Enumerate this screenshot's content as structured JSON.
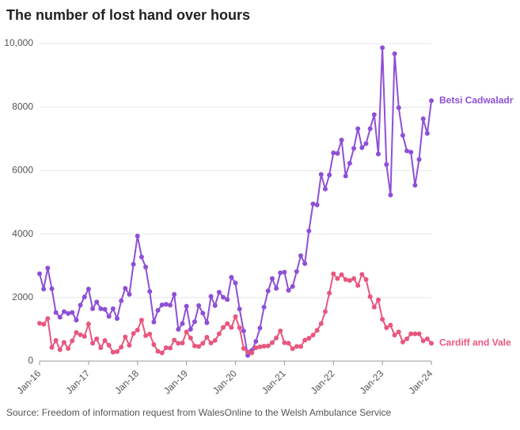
{
  "chart_data": {
    "type": "line",
    "title": "The number of lost hand over hours",
    "source": "Source: Freedom of information request from WalesOnline to the Welsh Ambulance Service",
    "categories": [
      "Jan-16",
      null,
      null,
      null,
      null,
      null,
      null,
      null,
      null,
      null,
      null,
      null,
      "Jan-17",
      null,
      null,
      null,
      null,
      null,
      null,
      null,
      null,
      null,
      null,
      null,
      "Jan-18",
      null,
      null,
      null,
      null,
      null,
      null,
      null,
      null,
      null,
      null,
      null,
      "Jan-19",
      null,
      null,
      null,
      null,
      null,
      null,
      null,
      null,
      null,
      null,
      null,
      "Jan-20",
      null,
      null,
      null,
      null,
      null,
      null,
      null,
      null,
      null,
      null,
      null,
      "Jan-21",
      null,
      null,
      null,
      null,
      null,
      null,
      null,
      null,
      null,
      null,
      null,
      "Jan-22",
      null,
      null,
      null,
      null,
      null,
      null,
      null,
      null,
      null,
      null,
      null,
      "Jan-23",
      null,
      null,
      null,
      null,
      null,
      null,
      null,
      null,
      null,
      null,
      null,
      "Jan-24"
    ],
    "series": [
      {
        "name": "Betsi Cadwaladr",
        "color": "#8e4fd6",
        "values": [
          2750,
          2270,
          2930,
          2280,
          1530,
          1380,
          1560,
          1500,
          1530,
          1290,
          1760,
          2020,
          2270,
          1650,
          1860,
          1650,
          1630,
          1410,
          1650,
          1340,
          1900,
          2290,
          2100,
          3050,
          3940,
          3280,
          2960,
          2190,
          1230,
          1600,
          1770,
          1790,
          1760,
          2100,
          1000,
          1180,
          1730,
          1000,
          1240,
          1750,
          1510,
          1210,
          2040,
          1750,
          2170,
          2010,
          1940,
          2640,
          2460,
          1640,
          950,
          180,
          340,
          620,
          1040,
          1700,
          2210,
          2600,
          2290,
          2780,
          2800,
          2230,
          2350,
          2820,
          3320,
          3070,
          4100,
          4950,
          4920,
          5880,
          5420,
          5860,
          6560,
          6540,
          6960,
          5830,
          6230,
          6700,
          7320,
          6720,
          6850,
          7320,
          7760,
          6520,
          9870,
          6190,
          5230,
          9680,
          7980,
          7110,
          6620,
          6580,
          5540,
          6350,
          7630,
          7170,
          8200
        ]
      },
      {
        "name": "Cardiff and Vale",
        "color": "#e8577e",
        "values": [
          1190,
          1160,
          1340,
          430,
          650,
          360,
          590,
          400,
          640,
          900,
          830,
          780,
          1170,
          560,
          700,
          420,
          650,
          500,
          280,
          300,
          440,
          760,
          500,
          870,
          980,
          1290,
          800,
          850,
          520,
          310,
          260,
          420,
          410,
          660,
          560,
          570,
          920,
          730,
          480,
          460,
          560,
          750,
          570,
          650,
          860,
          1060,
          1180,
          1060,
          1400,
          1050,
          400,
          290,
          260,
          420,
          450,
          470,
          480,
          580,
          730,
          950,
          580,
          560,
          390,
          460,
          460,
          660,
          720,
          820,
          970,
          1180,
          1560,
          2140,
          2750,
          2600,
          2720,
          2570,
          2540,
          2600,
          2380,
          2730,
          2570,
          2030,
          1700,
          1930,
          1320,
          1050,
          1130,
          820,
          920,
          600,
          700,
          860,
          860,
          860,
          640,
          700,
          560
        ]
      }
    ],
    "ylim": [
      0,
      10000
    ],
    "yticks": [
      0,
      2000,
      4000,
      6000,
      8000,
      {
        "value": 10000,
        "label": "10,000"
      }
    ],
    "grid": true
  }
}
